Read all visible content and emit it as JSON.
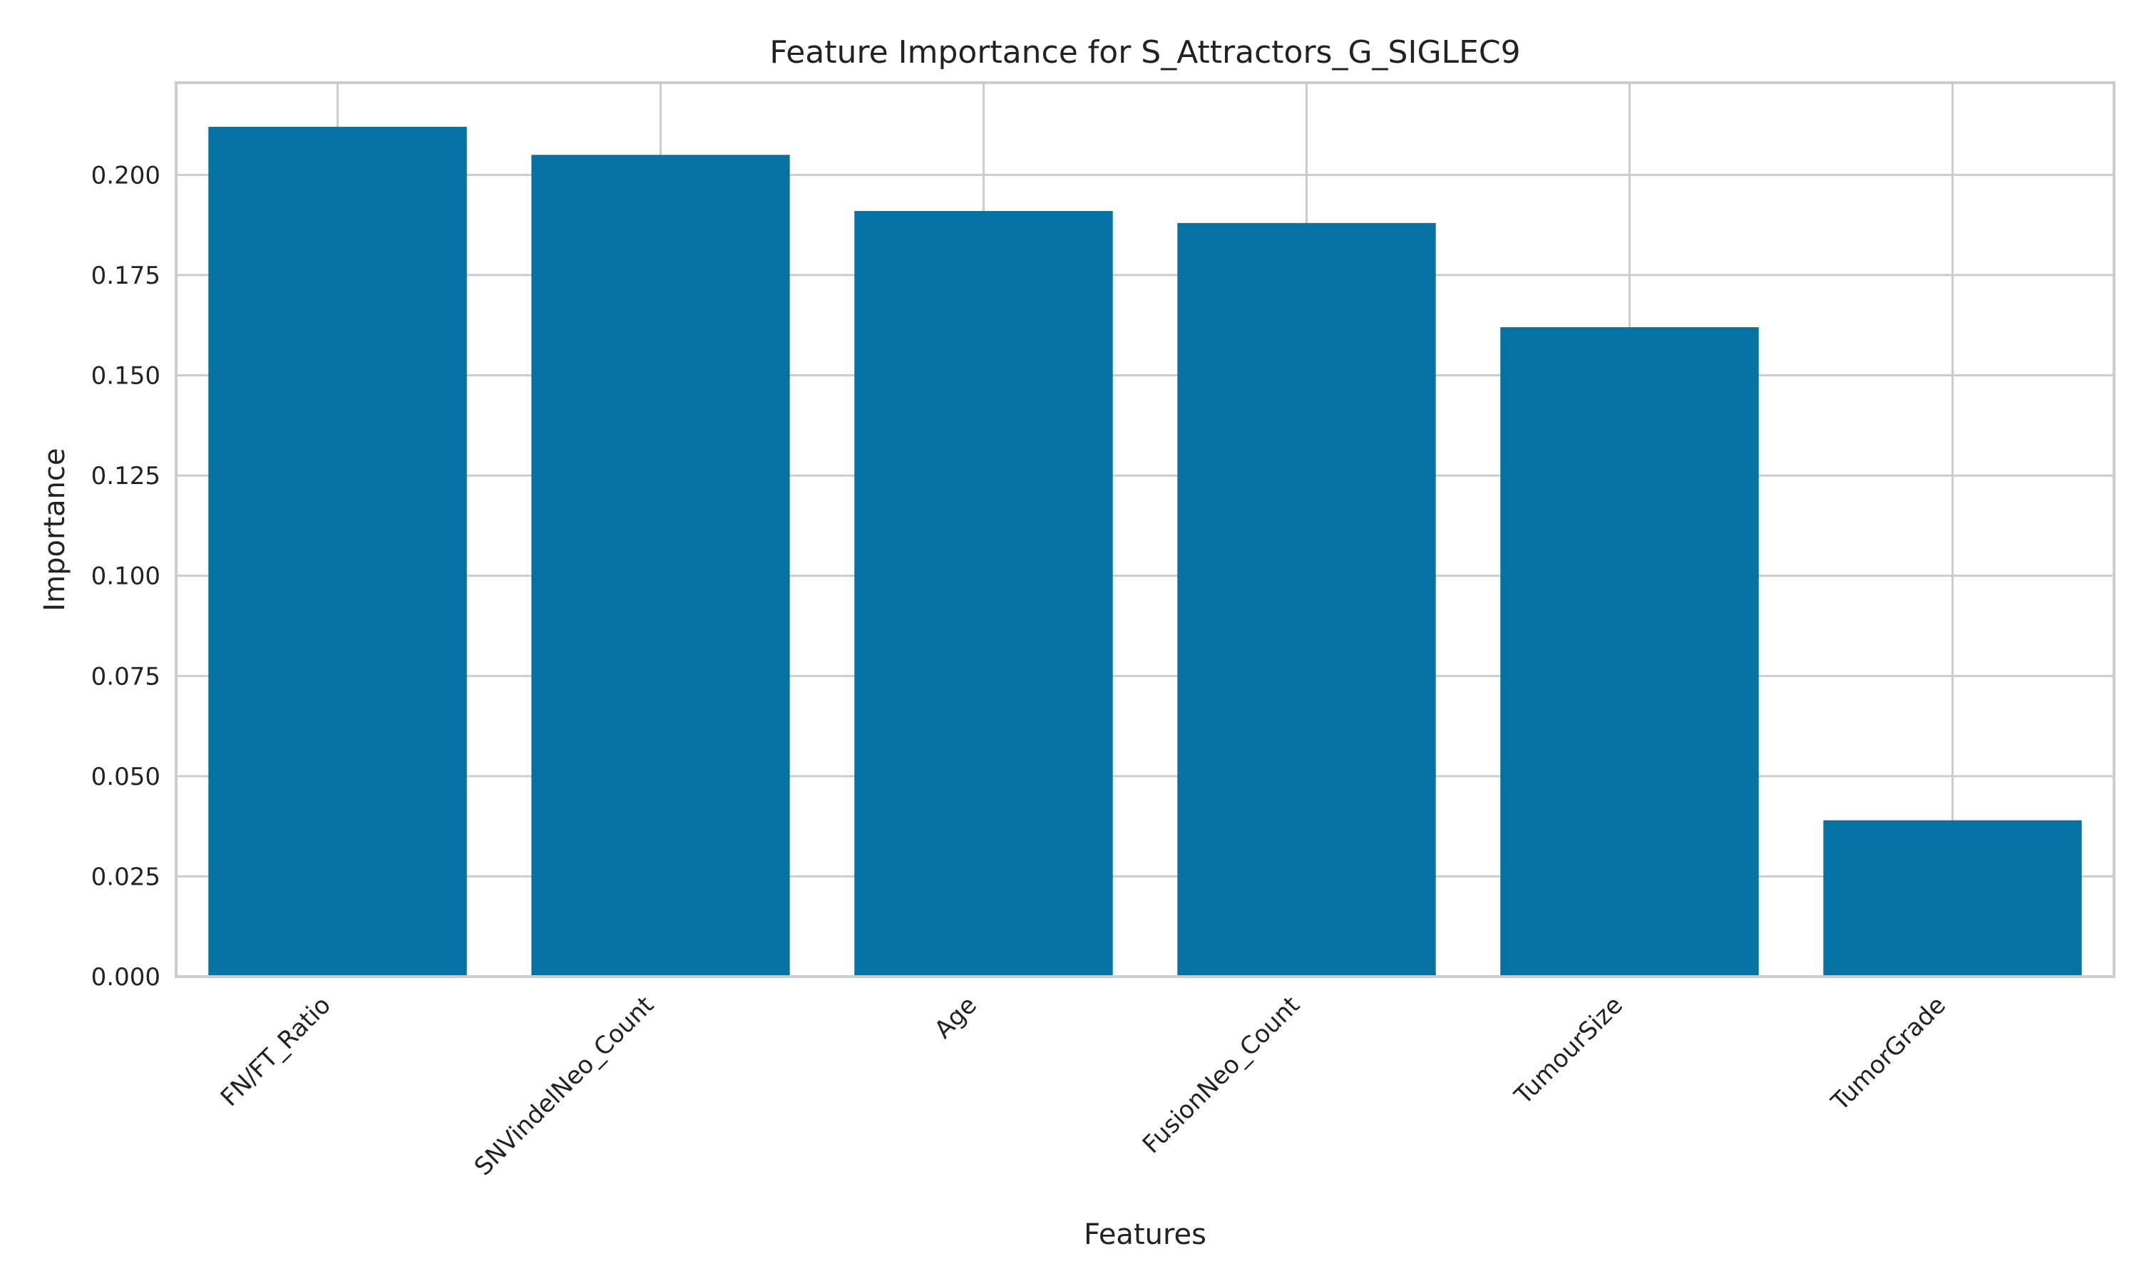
{
  "chart_data": {
    "type": "bar",
    "title": "Feature Importance for S_Attractors_G_SIGLEC9",
    "xlabel": "Features",
    "ylabel": "Importance",
    "categories": [
      "FN/FT_Ratio",
      "SNVindelNeo_Count",
      "Age",
      "FusionNeo_Count",
      "TumourSize",
      "TumorGrade"
    ],
    "values": [
      0.212,
      0.205,
      0.191,
      0.188,
      0.162,
      0.039
    ],
    "ylim": [
      0,
      0.223
    ],
    "yticks": [
      0.0,
      0.025,
      0.05,
      0.075,
      0.1,
      0.125,
      0.15,
      0.175,
      0.2
    ],
    "ytick_labels": [
      "0.000",
      "0.025",
      "0.050",
      "0.075",
      "0.100",
      "0.125",
      "0.150",
      "0.175",
      "0.200"
    ],
    "grid": true,
    "x_tick_rotation": "45 degrees",
    "colors": {
      "bar": "#0472a3",
      "grid": "#cccccc",
      "spine": "#cccccc",
      "text": "#222222"
    }
  }
}
